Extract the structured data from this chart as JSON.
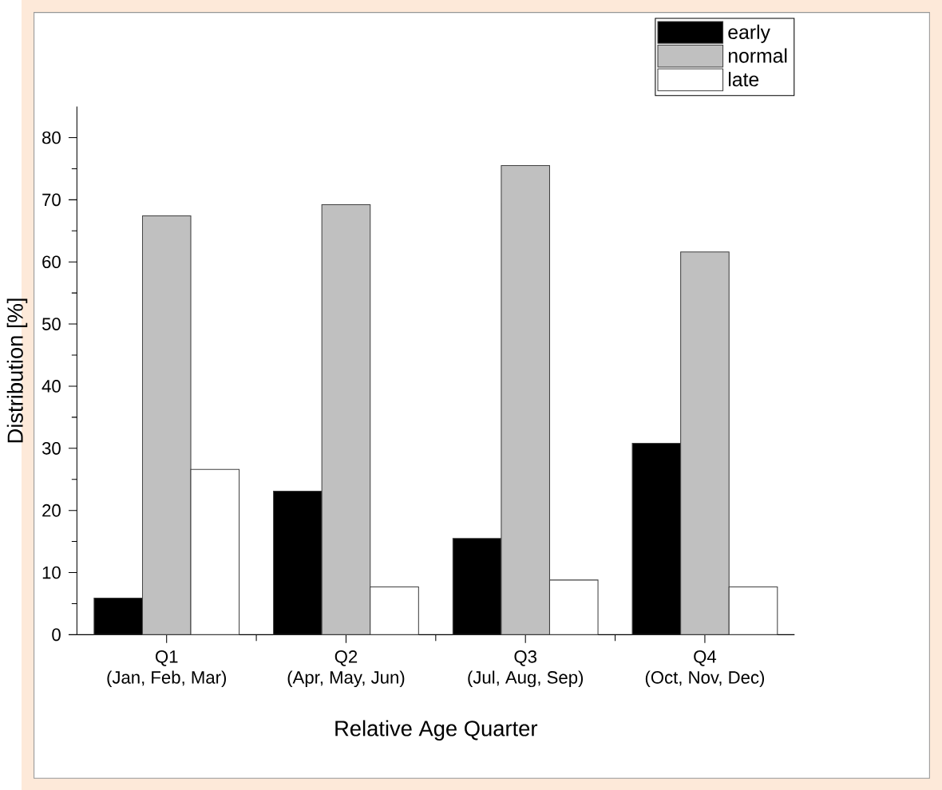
{
  "chart_data": {
    "type": "bar",
    "xlabel": "Relative Age Quarter",
    "ylabel": "Distribution [%]",
    "categories": [
      "Q1\n(Jan, Feb, Mar)",
      "Q2\n(Apr, May, Jun)",
      "Q3\n(Jul, Aug, Sep)",
      "Q4\n(Oct, Nov, Dec)"
    ],
    "series": [
      {
        "name": "early",
        "color": "#000000",
        "values": [
          5.9,
          23.1,
          15.5,
          30.8
        ]
      },
      {
        "name": "normal",
        "color": "#c0c0c0",
        "values": [
          67.4,
          69.2,
          75.5,
          61.6
        ]
      },
      {
        "name": "late",
        "color": "#ffffff",
        "values": [
          26.6,
          7.7,
          8.8,
          7.7
        ]
      }
    ],
    "ylim": [
      0,
      85
    ],
    "yticks": [
      0,
      10,
      20,
      30,
      40,
      50,
      60,
      70,
      80
    ],
    "legend": "top right",
    "grid": false
  }
}
